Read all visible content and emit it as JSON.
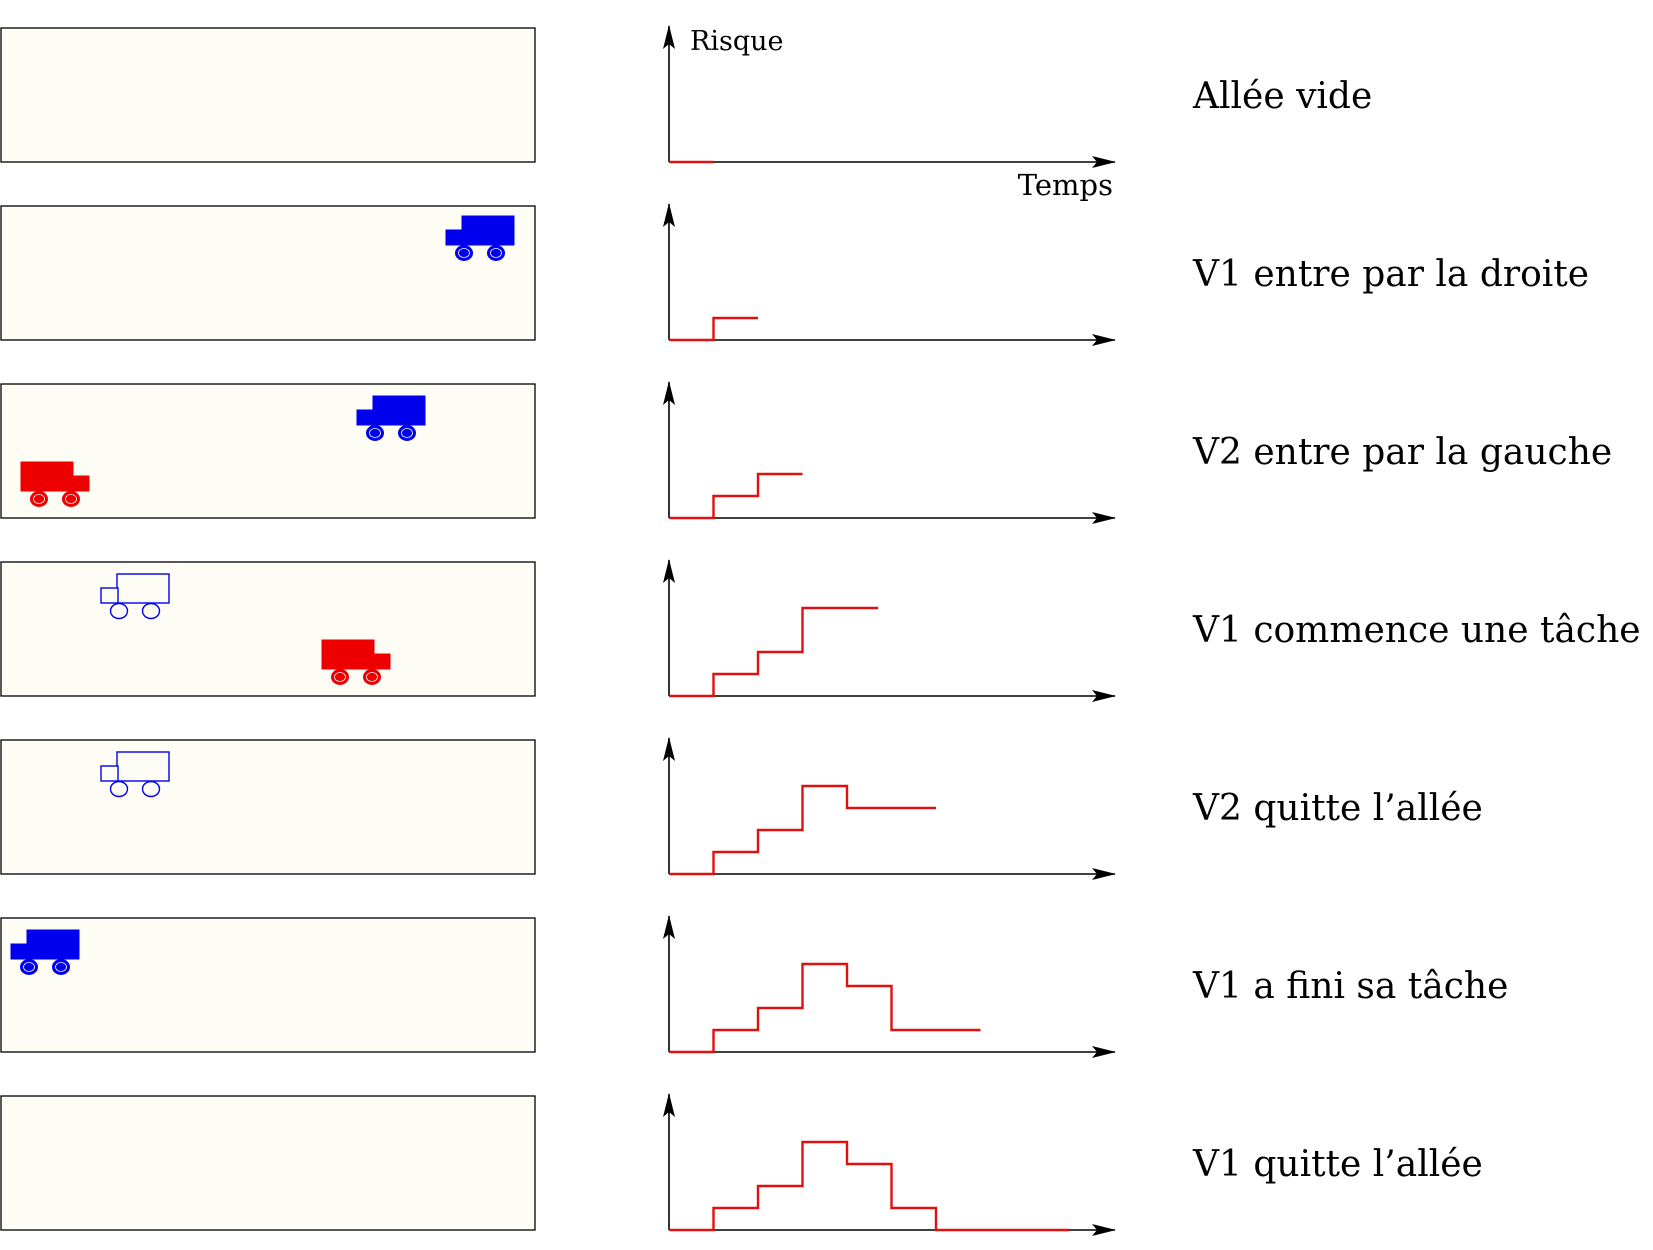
{
  "colors": {
    "aisle_fill": "#fdfdf5",
    "aisle_stroke": "#000000",
    "risk_line": "#e01010",
    "v1": "#0000ee",
    "v2": "#ee0000",
    "axis": "#000000"
  },
  "axes": {
    "y_label": "Risque",
    "x_label": "Temps"
  },
  "steps": [
    {
      "caption": "Allée vide",
      "vehicles": [],
      "risk": [
        0
      ],
      "risk_end": 1
    },
    {
      "caption": "V1 entre par la droite",
      "vehicles": [
        {
          "id": "V1",
          "color": "blue",
          "style": "filled",
          "facing": "left",
          "pos": "right-top"
        }
      ],
      "risk": [
        0,
        1
      ],
      "risk_end": 2
    },
    {
      "caption": "V2 entre par la gauche",
      "vehicles": [
        {
          "id": "V1",
          "color": "blue",
          "style": "filled",
          "facing": "left",
          "pos": "mid-right-top"
        },
        {
          "id": "V2",
          "color": "red",
          "style": "filled",
          "facing": "right",
          "pos": "left-bottom"
        }
      ],
      "risk": [
        0,
        1,
        2
      ],
      "risk_end": 3
    },
    {
      "caption": "V1 commence une tâche",
      "vehicles": [
        {
          "id": "V1",
          "color": "blue",
          "style": "outline",
          "facing": "left",
          "pos": "left-top"
        },
        {
          "id": "V2",
          "color": "red",
          "style": "filled",
          "facing": "right",
          "pos": "middle-bottom"
        }
      ],
      "risk": [
        0,
        1,
        2,
        4
      ],
      "risk_end": 4.7
    },
    {
      "caption": "V2 quitte l’allée",
      "vehicles": [
        {
          "id": "V1",
          "color": "blue",
          "style": "outline",
          "facing": "left",
          "pos": "left-top"
        }
      ],
      "risk": [
        0,
        1,
        2,
        4,
        3
      ],
      "risk_end": 6
    },
    {
      "caption": "V1 a fini sa tâche",
      "vehicles": [
        {
          "id": "V1",
          "color": "blue",
          "style": "filled",
          "facing": "left",
          "pos": "far-left-top"
        }
      ],
      "risk": [
        0,
        1,
        2,
        4,
        3,
        1
      ],
      "risk_end": 7
    },
    {
      "caption": "V1 quitte l’allée",
      "vehicles": [],
      "risk": [
        0,
        1,
        2,
        4,
        3,
        1,
        0
      ],
      "risk_end": 9
    }
  ]
}
